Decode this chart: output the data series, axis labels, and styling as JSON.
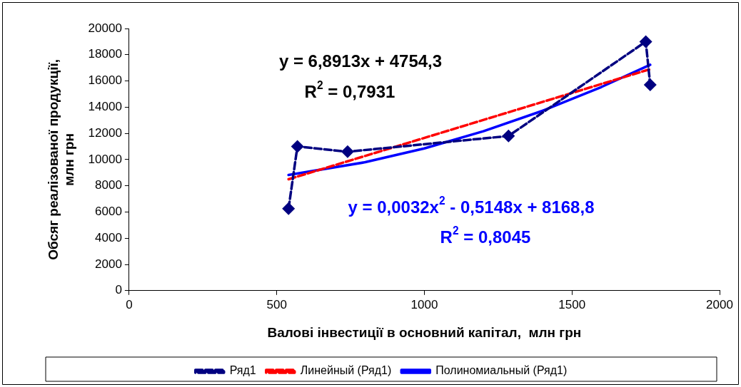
{
  "chart_data": {
    "type": "line",
    "xlabel": "Валові інвестиції в основний капітал,  млн грн",
    "ylabel": "Обсяг реалізованої продукції, млн грн",
    "xlim": [
      0,
      2000
    ],
    "xticks": [
      0,
      500,
      1000,
      1500,
      2000
    ],
    "ylim": [
      0,
      20000
    ],
    "yticks": [
      0,
      2000,
      4000,
      6000,
      8000,
      10000,
      12000,
      14000,
      16000,
      18000,
      20000
    ],
    "grid": false,
    "legend": "bottom",
    "series": [
      {
        "name": "Ряд1",
        "color": "#000080",
        "marker": "diamond",
        "line_style": "dashed",
        "x": [
          540,
          570,
          740,
          1285,
          1750,
          1765
        ],
        "values": [
          6250,
          11000,
          10600,
          11800,
          19000,
          15700
        ]
      },
      {
        "name": "Линейный (Ряд1)",
        "color": "#ff0000",
        "marker": "none",
        "line_style": "dashed",
        "x": [
          540,
          1765
        ],
        "values": [
          8500,
          16900
        ]
      },
      {
        "name": "Полиномиальный (Ряд1)",
        "color": "#0000ff",
        "marker": "none",
        "line_style": "solid",
        "x": [
          540,
          800,
          1000,
          1200,
          1400,
          1600,
          1765
        ],
        "values": [
          8820,
          9800,
          10850,
          12160,
          13720,
          15540,
          17230
        ]
      }
    ],
    "annotations": [
      "y = 6,8913x + 4754,3",
      "R$^{2}$ = 0,7931",
      "y = 0,0032x$^{2}$ - 0,5148x + 8168,8",
      "R$^{2}$ = 0,8045"
    ]
  }
}
